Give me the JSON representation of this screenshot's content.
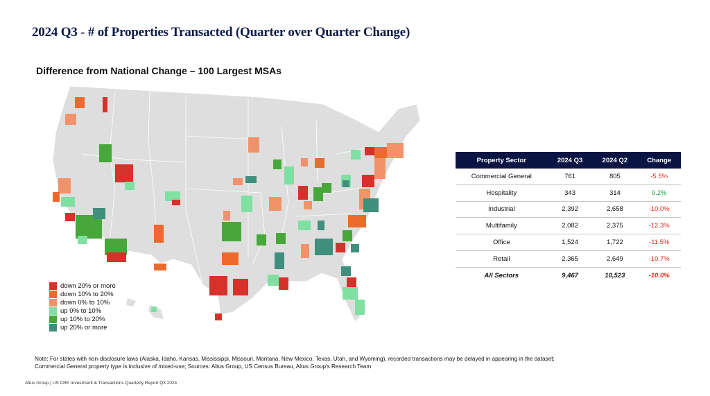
{
  "slide_title": "2024 Q3 - # of Properties Transacted (Quarter over Quarter Change)",
  "map": {
    "title": "Difference from National Change – 100 Largest MSAs",
    "legend": [
      {
        "label": "down 20% or more",
        "color": "#d7312c"
      },
      {
        "label": "down 10% to 20%",
        "color": "#ec6a2c"
      },
      {
        "label": "down 0% to 10%",
        "color": "#f1936a"
      },
      {
        "label": "up 0% to 10%",
        "color": "#7fe0a2"
      },
      {
        "label": "up 10% to 20%",
        "color": "#47a73a"
      },
      {
        "label": "up 20% or more",
        "color": "#3f8f7d"
      }
    ]
  },
  "table": {
    "headers": [
      "Property Sector",
      "2024 Q3",
      "2024 Q2",
      "Change"
    ],
    "rows": [
      {
        "sector": "Commercial General",
        "q3": "761",
        "q2": "805",
        "change": "-5.5%",
        "status": "neg"
      },
      {
        "sector": "Hospitality",
        "q3": "343",
        "q2": "314",
        "change": "9.2%",
        "status": "pos"
      },
      {
        "sector": "Industrial",
        "q3": "2,392",
        "q2": "2,658",
        "change": "-10.0%",
        "status": "neg"
      },
      {
        "sector": "Multifamily",
        "q3": "2,082",
        "q2": "2,375",
        "change": "-12.3%",
        "status": "neg"
      },
      {
        "sector": "Office",
        "q3": "1,524",
        "q2": "1,722",
        "change": "-11.5%",
        "status": "neg"
      },
      {
        "sector": "Retail",
        "q3": "2,365",
        "q2": "2,649",
        "change": "-10.7%",
        "status": "neg"
      }
    ],
    "total": {
      "sector": "All Sectors",
      "q3": "9,467",
      "q2": "10,523",
      "change": "-10.0%",
      "status": "neg"
    }
  },
  "note_line1": "Note: For states with non-disclosure laws (Alaska, Idaho, Kansas, Mississippi, Missouri, Montana, New Mexico, Texas, Utah, and Wyoming), recorded transactions may be delayed in appearing in the dataset;",
  "note_line2": "Commercial General property type is inclusive of mixed-use; Sources: Altus Group, US Census Bureau, Altus Group's Research Team",
  "footer": "Altus Group  |  US CRE Investment & Transactions Quarterly Report Q3 2024"
}
